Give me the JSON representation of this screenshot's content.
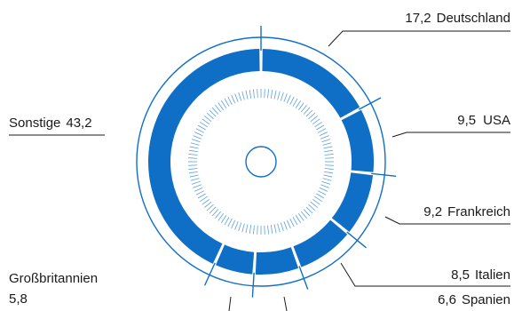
{
  "chart_data": {
    "type": "pie",
    "title": "",
    "segments": [
      {
        "value": "17,2",
        "name": "Deutschland"
      },
      {
        "value": "9,5",
        "name": "USA"
      },
      {
        "value": "9,2",
        "name": "Frankreich"
      },
      {
        "value": "8,5",
        "name": "Italien"
      },
      {
        "value": "6,6",
        "name": "Spanien"
      },
      {
        "value": "5,8",
        "name": "Großbritannien"
      },
      {
        "value": "43,2",
        "name": "Sonstige"
      }
    ],
    "values": [
      17.2,
      9.5,
      9.2,
      8.5,
      6.6,
      5.8,
      43.2
    ],
    "colors": {
      "fill": "#0f6fc6",
      "line": "#0f6fc6",
      "leader": "#1a1a1a"
    }
  }
}
